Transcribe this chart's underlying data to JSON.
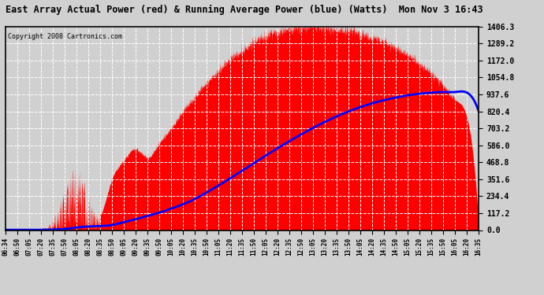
{
  "title": "East Array Actual Power (red) & Running Average Power (blue) (Watts)  Mon Nov 3 16:43",
  "copyright": "Copyright 2008 Cartronics.com",
  "ylim": [
    0.0,
    1406.3
  ],
  "yticks": [
    0.0,
    117.2,
    234.4,
    351.6,
    468.8,
    586.0,
    703.2,
    820.4,
    937.6,
    1054.8,
    1172.0,
    1289.2,
    1406.3
  ],
  "xtick_labels": [
    "06:34",
    "06:50",
    "07:05",
    "07:20",
    "07:35",
    "07:50",
    "08:05",
    "08:20",
    "08:35",
    "08:50",
    "09:05",
    "09:20",
    "09:35",
    "09:50",
    "10:05",
    "10:20",
    "10:35",
    "10:50",
    "11:05",
    "11:20",
    "11:35",
    "11:50",
    "12:05",
    "12:20",
    "12:35",
    "12:50",
    "13:05",
    "13:20",
    "13:35",
    "13:50",
    "14:05",
    "14:20",
    "14:35",
    "14:50",
    "15:05",
    "15:20",
    "15:35",
    "15:50",
    "16:05",
    "16:20",
    "16:35"
  ],
  "background_color": "#d0d0d0",
  "plot_bg_color": "#d0d0d0",
  "actual_color": "#ff0000",
  "avg_color": "#0000ff",
  "grid_color": "#ffffff",
  "border_color": "#000000",
  "actual_power_by_tick": [
    2,
    2,
    2,
    8,
    55,
    200,
    290,
    170,
    100,
    350,
    480,
    560,
    500,
    600,
    700,
    820,
    920,
    1020,
    1100,
    1180,
    1240,
    1300,
    1340,
    1370,
    1390,
    1400,
    1400,
    1395,
    1390,
    1380,
    1360,
    1330,
    1300,
    1260,
    1210,
    1150,
    1080,
    1000,
    900,
    780,
    30
  ],
  "running_avg_by_tick": [
    2,
    2,
    2,
    2,
    4,
    8,
    18,
    25,
    28,
    35,
    55,
    75,
    98,
    120,
    148,
    178,
    215,
    260,
    308,
    358,
    410,
    462,
    515,
    566,
    615,
    662,
    706,
    748,
    786,
    820,
    850,
    876,
    898,
    916,
    931,
    942,
    950,
    954,
    954,
    950,
    820
  ]
}
